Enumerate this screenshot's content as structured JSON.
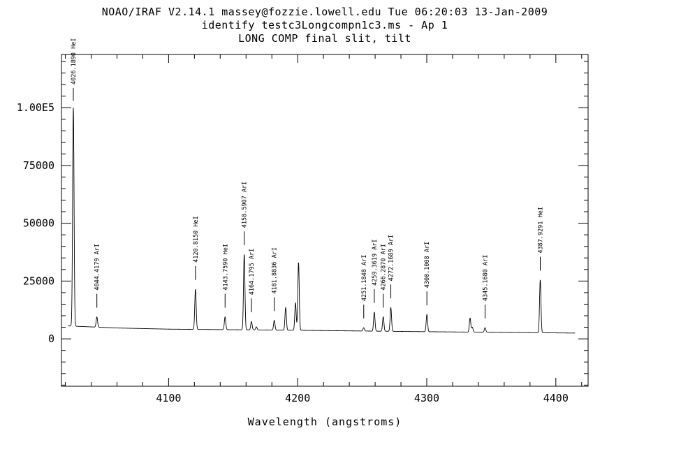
{
  "chart_data": {
    "type": "line",
    "title_lines": [
      "NOAO/IRAF V2.14.1 massey@fozzie.lowell.edu Tue 06:20:03 13-Jan-2009",
      "identify testc3Longcompn1c3.ms - Ap 1",
      "LONG COMP final slit, tilt"
    ],
    "xlabel": "Wavelength (angstroms)",
    "ylabel": "",
    "xlim": [
      4017,
      4425
    ],
    "ylim": [
      -20500,
      123000
    ],
    "xticks": [
      {
        "value": 4100,
        "label": "4100"
      },
      {
        "value": 4200,
        "label": "4200"
      },
      {
        "value": 4300,
        "label": "4300"
      },
      {
        "value": 4400,
        "label": "4400"
      }
    ],
    "yticks": [
      {
        "value": 0,
        "label": "0"
      },
      {
        "value": 25000,
        "label": "25000"
      },
      {
        "value": 50000,
        "label": "50000"
      },
      {
        "value": 75000,
        "label": "75000"
      },
      {
        "value": 100000,
        "label": "1.00E5"
      }
    ],
    "x_range": [
      4022,
      4415
    ],
    "baseline": [
      [
        4022,
        5600
      ],
      [
        4060,
        4700
      ],
      [
        4100,
        4200
      ],
      [
        4200,
        3700
      ],
      [
        4300,
        3100
      ],
      [
        4415,
        2500
      ]
    ],
    "peaks": [
      {
        "x": 4026.19,
        "y": 100000,
        "labeled": true
      },
      {
        "x": 4044.42,
        "y": 9500,
        "labeled": true
      },
      {
        "x": 4120.82,
        "y": 21500,
        "labeled": true
      },
      {
        "x": 4143.76,
        "y": 9500,
        "labeled": true
      },
      {
        "x": 4158.59,
        "y": 36500,
        "labeled": true
      },
      {
        "x": 4164.18,
        "y": 7500,
        "labeled": true
      },
      {
        "x": 4168.0,
        "y": 5200,
        "labeled": false
      },
      {
        "x": 4181.88,
        "y": 8000,
        "labeled": true
      },
      {
        "x": 4190.7,
        "y": 13500,
        "labeled": false
      },
      {
        "x": 4198.3,
        "y": 15500,
        "labeled": false
      },
      {
        "x": 4200.67,
        "y": 33000,
        "labeled": false
      },
      {
        "x": 4251.18,
        "y": 4800,
        "labeled": true
      },
      {
        "x": 4259.36,
        "y": 11500,
        "labeled": true
      },
      {
        "x": 4266.29,
        "y": 9500,
        "labeled": true
      },
      {
        "x": 4272.17,
        "y": 13500,
        "labeled": true
      },
      {
        "x": 4300.1,
        "y": 10500,
        "labeled": true
      },
      {
        "x": 4333.56,
        "y": 9000,
        "labeled": false
      },
      {
        "x": 4335.3,
        "y": 5000,
        "labeled": false
      },
      {
        "x": 4345.17,
        "y": 4800,
        "labeled": true
      },
      {
        "x": 4387.93,
        "y": 25500,
        "labeled": true
      }
    ],
    "line_ids": [
      {
        "x": 4026.19,
        "label": "4026.1890 HeI",
        "tick_bottom": 103000,
        "tick_top": 108500
      },
      {
        "x": 4044.42,
        "label": "4044.4179 ArI",
        "tick_bottom": 13500,
        "tick_top": 19500
      },
      {
        "x": 4120.82,
        "label": "4120.8150 HeI",
        "tick_bottom": 25500,
        "tick_top": 31500
      },
      {
        "x": 4143.76,
        "label": "4143.7590 HeI",
        "tick_bottom": 13500,
        "tick_top": 19500
      },
      {
        "x": 4158.59,
        "label": "4158.5907 ArI",
        "tick_bottom": 40500,
        "tick_top": 46500
      },
      {
        "x": 4164.18,
        "label": "4164.1795 ArI",
        "tick_bottom": 11500,
        "tick_top": 17500
      },
      {
        "x": 4181.88,
        "label": "4181.8836 ArI",
        "tick_bottom": 12000,
        "tick_top": 18000
      },
      {
        "x": 4251.18,
        "label": "4251.1848 ArI",
        "tick_bottom": 8800,
        "tick_top": 14800
      },
      {
        "x": 4259.36,
        "label": "4259.3619 ArI",
        "tick_bottom": 15500,
        "tick_top": 21500
      },
      {
        "x": 4266.29,
        "label": "4266.2870 ArI",
        "tick_bottom": 13500,
        "tick_top": 19500
      },
      {
        "x": 4272.17,
        "label": "4272.1689 ArI",
        "tick_bottom": 17500,
        "tick_top": 23500
      },
      {
        "x": 4300.1,
        "label": "4300.1008 ArI",
        "tick_bottom": 14500,
        "tick_top": 20500
      },
      {
        "x": 4345.17,
        "label": "4345.1680 ArI",
        "tick_bottom": 8800,
        "tick_top": 14800
      },
      {
        "x": 4387.93,
        "label": "4387.9291 HeI",
        "tick_bottom": 29500,
        "tick_top": 35500
      }
    ]
  }
}
